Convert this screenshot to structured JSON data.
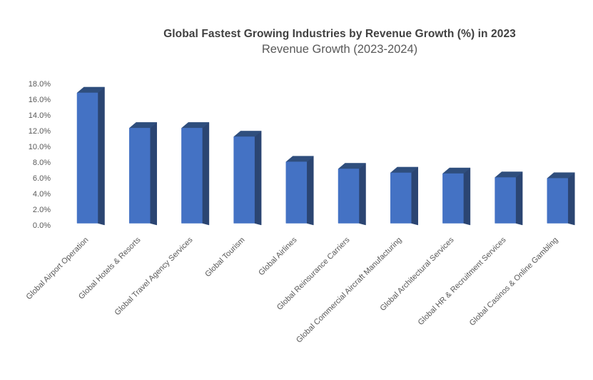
{
  "chart_data": {
    "type": "bar",
    "bar_style": "3d-column",
    "title": "Global Fastest Growing Industries by Revenue Growth (%) in 2023",
    "subtitle": "Revenue Growth (2023-2024)",
    "categories": [
      "Global Airport Operation",
      "Global Hotels & Resorts",
      "Global Travel Agency Services",
      "Global Tourism",
      "Global Airlines",
      "Global Reinsurance Carriers",
      "Global Commercial Aircraft Manufacturing",
      "Global Architectural Services",
      "Global HR & Recruitment Services",
      "Global Casinos & Online Gambling"
    ],
    "values": [
      16.9,
      12.4,
      12.4,
      11.3,
      8.1,
      7.2,
      6.7,
      6.6,
      6.1,
      6.0
    ],
    "unit": "%",
    "xlabel": "",
    "ylabel": "",
    "ylim": [
      0,
      18
    ],
    "ytick_step": 2,
    "ytick_labels": [
      "0.0%",
      "2.0%",
      "4.0%",
      "6.0%",
      "8.0%",
      "10.0%",
      "12.0%",
      "14.0%",
      "16.0%",
      "18.0%"
    ],
    "grid": false,
    "legend": false,
    "category_label_rotation_deg": 45,
    "colors": {
      "bar_front": "#4472C4",
      "bar_top": "#2F4E7D",
      "bar_side": "#2B4572",
      "title_text": "#404040",
      "subtitle_text": "#595959",
      "axis_text": "#595959",
      "background": "#FFFFFF"
    }
  }
}
